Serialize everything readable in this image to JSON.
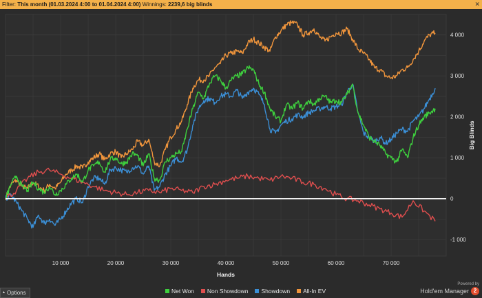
{
  "filter_bar": {
    "filter_label": "Filter:",
    "filter_value": "This month (01.03.2024 4:00 to 01.04.2024 4:00)",
    "winnings_label": "Winnings:",
    "winnings_value": "2239,6 big blinds"
  },
  "footer": {
    "options_label": "Options",
    "powered_by": "Powered by",
    "brand_name": "Hold'em Manager",
    "brand_badge": "2"
  },
  "colors": {
    "background": "#2b2b2b",
    "grid": "#3d3d3d",
    "zero_line": "#ffffff",
    "filter_bar": "#f4b14a"
  },
  "chart_data": {
    "type": "line",
    "xlabel": "Hands",
    "ylabel": "Big Blinds",
    "xlim": [
      0,
      80000
    ],
    "ylim": [
      -1400,
      4500
    ],
    "x_ticks": [
      10000,
      20000,
      30000,
      40000,
      50000,
      60000,
      70000
    ],
    "x_tick_labels": [
      "10 000",
      "20 000",
      "30 000",
      "40 000",
      "50 000",
      "60 000",
      "70 000"
    ],
    "y_ticks": [
      -1000,
      0,
      1000,
      2000,
      3000,
      4000
    ],
    "y_tick_labels": [
      "-1 000",
      "0",
      "1 000",
      "2 000",
      "3 000",
      "4 000"
    ],
    "grid": true,
    "legend_position": "bottom",
    "series": [
      {
        "name": "Net Won",
        "color": "#3ecf3e",
        "x": [
          0,
          1000,
          2000,
          3000,
          4000,
          5000,
          6000,
          7000,
          8000,
          9000,
          10000,
          11000,
          12000,
          13000,
          14000,
          15000,
          16000,
          17000,
          18000,
          19000,
          20000,
          21000,
          22000,
          23000,
          24000,
          25000,
          26000,
          27000,
          28000,
          29000,
          30000,
          31000,
          32000,
          33000,
          34000,
          35000,
          36000,
          37000,
          38000,
          39000,
          40000,
          41000,
          42000,
          43000,
          44000,
          45000,
          46000,
          47000,
          48000,
          49000,
          50000,
          51000,
          52000,
          53000,
          54000,
          55000,
          56000,
          57000,
          58000,
          59000,
          60000,
          61000,
          62000,
          63000,
          64000,
          65000,
          66000,
          67000,
          68000,
          69000,
          70000,
          71000,
          72000,
          73000,
          74000,
          75000,
          76000,
          77000,
          78000
        ],
        "values": [
          0,
          350,
          550,
          300,
          200,
          400,
          250,
          150,
          300,
          100,
          200,
          350,
          500,
          600,
          400,
          700,
          800,
          900,
          650,
          950,
          1000,
          850,
          900,
          1100,
          1050,
          800,
          1100,
          500,
          450,
          900,
          1000,
          1100,
          1150,
          1700,
          2200,
          2600,
          2450,
          2800,
          3000,
          2900,
          2700,
          2900,
          3000,
          3050,
          3200,
          3150,
          2800,
          2600,
          2200,
          2000,
          1900,
          2300,
          2200,
          2350,
          2200,
          2400,
          2300,
          2450,
          2500,
          2350,
          2400,
          2350,
          2550,
          2800,
          2100,
          1800,
          1500,
          1400,
          1300,
          1100,
          1000,
          900,
          1200,
          1000,
          1500,
          1800,
          2000,
          2100,
          2200
        ]
      },
      {
        "name": "Non Showdown",
        "color": "#e04e4e",
        "x": [
          0,
          2000,
          4000,
          6000,
          8000,
          10000,
          12000,
          14000,
          16000,
          18000,
          20000,
          22000,
          24000,
          26000,
          28000,
          30000,
          32000,
          34000,
          36000,
          38000,
          40000,
          42000,
          44000,
          46000,
          48000,
          50000,
          52000,
          54000,
          56000,
          58000,
          60000,
          62000,
          64000,
          66000,
          68000,
          70000,
          72000,
          74000,
          76000,
          78000
        ],
        "values": [
          0,
          200,
          500,
          650,
          700,
          600,
          500,
          400,
          300,
          200,
          150,
          100,
          150,
          200,
          150,
          250,
          200,
          150,
          300,
          350,
          450,
          500,
          550,
          500,
          450,
          550,
          500,
          400,
          350,
          250,
          100,
          0,
          -50,
          -150,
          -250,
          -350,
          -450,
          -50,
          -300,
          -550
        ]
      },
      {
        "name": "Showdown",
        "color": "#3b8fd6",
        "x": [
          0,
          1000,
          2000,
          3000,
          4000,
          5000,
          6000,
          7000,
          8000,
          9000,
          10000,
          11000,
          12000,
          13000,
          14000,
          15000,
          16000,
          17000,
          18000,
          19000,
          20000,
          21000,
          22000,
          23000,
          24000,
          25000,
          26000,
          27000,
          28000,
          29000,
          30000,
          31000,
          32000,
          33000,
          34000,
          35000,
          36000,
          37000,
          38000,
          39000,
          40000,
          41000,
          42000,
          43000,
          44000,
          45000,
          46000,
          47000,
          48000,
          49000,
          50000,
          51000,
          52000,
          53000,
          54000,
          55000,
          56000,
          57000,
          58000,
          59000,
          60000,
          61000,
          62000,
          63000,
          64000,
          65000,
          66000,
          67000,
          68000,
          69000,
          70000,
          71000,
          72000,
          73000,
          74000,
          75000,
          76000,
          77000,
          78000
        ],
        "values": [
          0,
          100,
          -100,
          -300,
          -500,
          -700,
          -400,
          -600,
          -500,
          -650,
          -500,
          -300,
          -100,
          0,
          -100,
          300,
          500,
          500,
          350,
          700,
          750,
          700,
          650,
          750,
          800,
          600,
          800,
          200,
          300,
          600,
          800,
          1000,
          900,
          1200,
          1800,
          2200,
          2400,
          2450,
          2350,
          2500,
          2550,
          2500,
          2650,
          2450,
          2600,
          2700,
          2550,
          2300,
          1700,
          1600,
          1800,
          1900,
          1950,
          2050,
          2000,
          2100,
          2150,
          2200,
          2250,
          2200,
          2250,
          2300,
          2600,
          2800,
          2100,
          1600,
          1500,
          1400,
          1500,
          1350,
          1450,
          1600,
          1700,
          1650,
          1900,
          2000,
          2200,
          2450,
          2700
        ]
      },
      {
        "name": "All-In EV",
        "color": "#f0953c",
        "x": [
          0,
          1000,
          2000,
          3000,
          4000,
          5000,
          6000,
          7000,
          8000,
          9000,
          10000,
          11000,
          12000,
          13000,
          14000,
          15000,
          16000,
          17000,
          18000,
          19000,
          20000,
          21000,
          22000,
          23000,
          24000,
          25000,
          26000,
          27000,
          28000,
          29000,
          30000,
          31000,
          32000,
          33000,
          34000,
          35000,
          36000,
          37000,
          38000,
          39000,
          40000,
          41000,
          42000,
          43000,
          44000,
          45000,
          46000,
          47000,
          48000,
          49000,
          50000,
          51000,
          52000,
          53000,
          54000,
          55000,
          56000,
          57000,
          58000,
          59000,
          60000,
          61000,
          62000,
          63000,
          64000,
          65000,
          66000,
          67000,
          68000,
          69000,
          70000,
          71000,
          72000,
          73000,
          74000,
          75000,
          76000,
          77000,
          78000
        ],
        "values": [
          0,
          350,
          450,
          300,
          250,
          400,
          300,
          200,
          350,
          250,
          400,
          600,
          700,
          800,
          750,
          900,
          1000,
          1100,
          950,
          1100,
          1150,
          1000,
          1100,
          1200,
          1400,
          1300,
          1450,
          900,
          800,
          1200,
          1500,
          1700,
          1900,
          2300,
          2700,
          2900,
          2900,
          3000,
          3200,
          3300,
          3500,
          3550,
          3600,
          3550,
          3800,
          3900,
          3800,
          3700,
          3600,
          3950,
          4100,
          4250,
          4300,
          4250,
          4000,
          4050,
          4150,
          3950,
          3850,
          3950,
          4050,
          4050,
          4150,
          3900,
          3650,
          3550,
          3400,
          3200,
          3150,
          3000,
          2950,
          3000,
          3150,
          3200,
          3400,
          3600,
          3850,
          4000,
          4050
        ]
      }
    ]
  }
}
